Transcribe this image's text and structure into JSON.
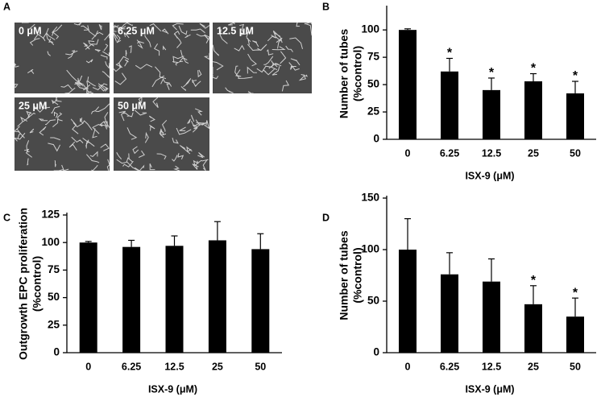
{
  "panels": {
    "A": {
      "label": "A",
      "images": [
        "0 μM",
        "6.25 μM",
        "12.5 μM",
        "25 μM",
        "50 μM"
      ]
    }
  },
  "chart_data": [
    {
      "type": "bar",
      "panel": "B",
      "categories": [
        "0",
        "6.25",
        "12.5",
        "25",
        "50"
      ],
      "values": [
        100,
        62,
        45,
        53,
        42
      ],
      "errors": [
        1,
        12,
        11,
        7,
        11
      ],
      "significance": [
        null,
        "*",
        "*",
        "*",
        "*"
      ],
      "color": "#000000",
      "xlabel": "ISX-9 (μM)",
      "ylabel": [
        "Number of tubes",
        "(%control)"
      ],
      "ylim": [
        0,
        120
      ],
      "yticks": [
        0,
        25,
        50,
        75,
        100
      ]
    },
    {
      "type": "bar",
      "panel": "C",
      "categories": [
        "0",
        "6.25",
        "12.5",
        "25",
        "50"
      ],
      "values": [
        100,
        96,
        97,
        102,
        94
      ],
      "errors": [
        1,
        6,
        9,
        17,
        14
      ],
      "color": "#000000",
      "xlabel": "ISX-9 (μM)",
      "ylabel": [
        "Outgrowth EPC proliferation",
        "(%control)"
      ],
      "ylim": [
        0,
        125
      ],
      "yticks": [
        0,
        25,
        50,
        75,
        100,
        125
      ]
    },
    {
      "type": "bar",
      "panel": "D",
      "categories": [
        "0",
        "6.25",
        "12.5",
        "25",
        "50"
      ],
      "values": [
        100,
        76,
        69,
        47,
        35
      ],
      "errors": [
        30,
        21,
        22,
        18,
        18
      ],
      "significance": [
        null,
        null,
        null,
        "*",
        "*"
      ],
      "color": "#000000",
      "xlabel": "ISX-9 (μM)",
      "ylabel": [
        "Number of tubes",
        "(%control)"
      ],
      "ylim": [
        0,
        150
      ],
      "yticks": [
        0,
        50,
        100,
        150
      ]
    }
  ]
}
